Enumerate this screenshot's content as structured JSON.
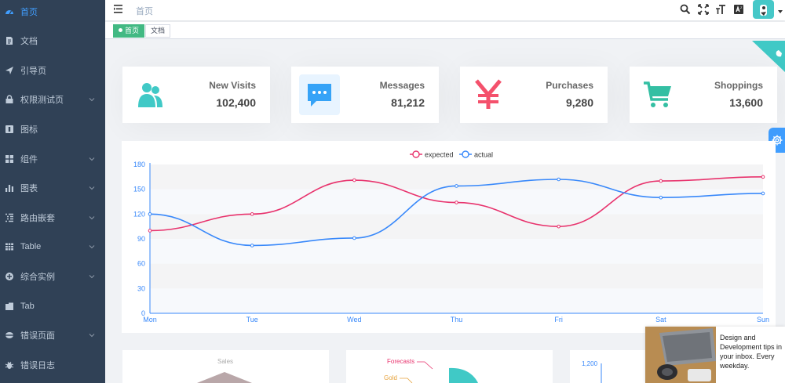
{
  "sidebar": {
    "items": [
      {
        "label": "首页",
        "icon": "dashboard-icon",
        "active": true,
        "has_children": false
      },
      {
        "label": "文档",
        "icon": "documentation-icon",
        "active": false,
        "has_children": false
      },
      {
        "label": "引导页",
        "icon": "guide-icon",
        "active": false,
        "has_children": false
      },
      {
        "label": "权限测试页",
        "icon": "lock-icon",
        "active": false,
        "has_children": true
      },
      {
        "label": "图标",
        "icon": "icon-icon",
        "active": false,
        "has_children": false
      },
      {
        "label": "组件",
        "icon": "component-icon",
        "active": false,
        "has_children": true
      },
      {
        "label": "图表",
        "icon": "chart-icon",
        "active": false,
        "has_children": true
      },
      {
        "label": "路由嵌套",
        "icon": "nested-icon",
        "active": false,
        "has_children": true
      },
      {
        "label": "Table",
        "icon": "table-icon",
        "active": false,
        "has_children": true
      },
      {
        "label": "综合实例",
        "icon": "example-icon",
        "active": false,
        "has_children": true
      },
      {
        "label": "Tab",
        "icon": "tab-icon",
        "active": false,
        "has_children": false
      },
      {
        "label": "错误页面",
        "icon": "error-page-icon",
        "active": false,
        "has_children": true
      },
      {
        "label": "错误日志",
        "icon": "bug-icon",
        "active": false,
        "has_children": false
      }
    ]
  },
  "navbar": {
    "breadcrumb": "首页",
    "right_icons": [
      "search-icon",
      "fullscreen-icon",
      "text-size-icon",
      "language-icon"
    ]
  },
  "tags": [
    {
      "label": "首页",
      "active": true
    },
    {
      "label": "文档",
      "active": false
    }
  ],
  "panels": [
    {
      "label": "New Visits",
      "value": "102,400",
      "icon": "peoples-icon",
      "color": "#40c9c6"
    },
    {
      "label": "Messages",
      "value": "81,212",
      "icon": "message-icon",
      "color": "#36a3f7"
    },
    {
      "label": "Purchases",
      "value": "9,280",
      "icon": "money-icon",
      "color": "#f4516c"
    },
    {
      "label": "Shoppings",
      "value": "13,600",
      "icon": "shopping-icon",
      "color": "#34bfa3"
    }
  ],
  "chart_data": {
    "type": "line",
    "categories": [
      "Mon",
      "Tue",
      "Wed",
      "Thu",
      "Fri",
      "Sat",
      "Sun"
    ],
    "series": [
      {
        "name": "expected",
        "values": [
          100,
          120,
          161,
          134,
          105,
          160,
          165
        ],
        "color": "#e8336d"
      },
      {
        "name": "actual",
        "values": [
          120,
          82,
          91,
          154,
          162,
          140,
          145
        ],
        "color": "#3888fa"
      }
    ],
    "ylim": [
      0,
      180
    ],
    "yticks": [
      "0",
      "30",
      "60",
      "90",
      "120",
      "150",
      "180"
    ],
    "legend": "top-center",
    "grid": true
  },
  "bottom_cards": {
    "radar_label": "Sales",
    "pie_labels": [
      "Forecasts",
      "Gold"
    ],
    "bar_tick": "1,200"
  },
  "ad": {
    "text": "Design and Development tips in your inbox. Every weekday."
  },
  "colors": {
    "sidebar_bg": "#304156",
    "sidebar_text": "#bfcbd9",
    "sidebar_active": "#409eff",
    "tag_active": "#42b983",
    "corner": "#40c9c6"
  }
}
